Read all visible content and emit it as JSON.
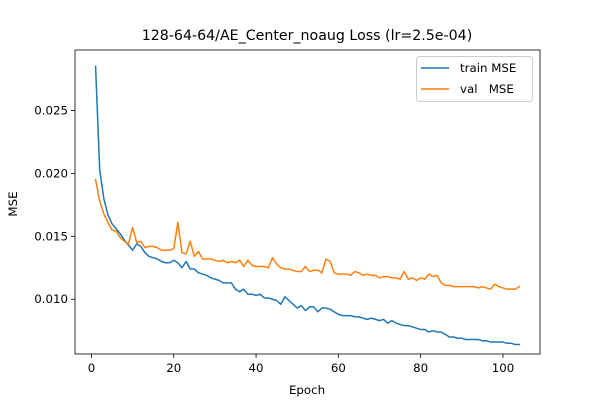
{
  "chart_data": {
    "type": "line",
    "title": "128-64-64/AE_Center_noaug Loss (lr=2.5e-04)",
    "xlabel": "Epoch",
    "ylabel": "MSE",
    "xlim": [
      -4,
      109
    ],
    "ylim": [
      0.00565,
      0.0298
    ],
    "xticks": [
      0,
      20,
      40,
      60,
      80,
      100
    ],
    "yticks": [
      0.01,
      0.015,
      0.02,
      0.025
    ],
    "ytick_labels": [
      "0.010",
      "0.015",
      "0.020",
      "0.025"
    ],
    "grid": false,
    "legend_position": "top-right",
    "x": [
      1,
      2,
      3,
      4,
      5,
      6,
      7,
      8,
      9,
      10,
      11,
      12,
      13,
      14,
      15,
      16,
      17,
      18,
      19,
      20,
      21,
      22,
      23,
      24,
      25,
      26,
      27,
      28,
      29,
      30,
      31,
      32,
      33,
      34,
      35,
      36,
      37,
      38,
      39,
      40,
      41,
      42,
      43,
      44,
      45,
      46,
      47,
      48,
      49,
      50,
      51,
      52,
      53,
      54,
      55,
      56,
      57,
      58,
      59,
      60,
      61,
      62,
      63,
      64,
      65,
      66,
      67,
      68,
      69,
      70,
      71,
      72,
      73,
      74,
      75,
      76,
      77,
      78,
      79,
      80,
      81,
      82,
      83,
      84,
      85,
      86,
      87,
      88,
      89,
      90,
      91,
      92,
      93,
      94,
      95,
      96,
      97,
      98,
      99,
      100,
      101,
      102,
      103,
      104
    ],
    "series": [
      {
        "name": "train MSE",
        "color": "#1f77b4",
        "values": [
          0.0285,
          0.0203,
          0.018,
          0.0167,
          0.016,
          0.0156,
          0.0152,
          0.0147,
          0.0143,
          0.0139,
          0.0144,
          0.0142,
          0.0137,
          0.0134,
          0.0133,
          0.0132,
          0.013,
          0.0129,
          0.0129,
          0.0131,
          0.0129,
          0.0125,
          0.013,
          0.0124,
          0.0124,
          0.0121,
          0.012,
          0.0119,
          0.0117,
          0.0116,
          0.0115,
          0.0113,
          0.0113,
          0.0113,
          0.0108,
          0.0106,
          0.0108,
          0.0104,
          0.0104,
          0.0103,
          0.0104,
          0.0101,
          0.0101,
          0.01,
          0.0099,
          0.0096,
          0.0102,
          0.0099,
          0.0096,
          0.0093,
          0.0095,
          0.0091,
          0.0094,
          0.0094,
          0.009,
          0.0093,
          0.0093,
          0.0092,
          0.009,
          0.0088,
          0.0087,
          0.0087,
          0.0087,
          0.0086,
          0.0086,
          0.0085,
          0.0084,
          0.0085,
          0.0084,
          0.0083,
          0.0084,
          0.0081,
          0.0083,
          0.0081,
          0.008,
          0.0079,
          0.0079,
          0.0078,
          0.0077,
          0.0076,
          0.0076,
          0.0074,
          0.0075,
          0.0074,
          0.0074,
          0.0072,
          0.007,
          0.007,
          0.0069,
          0.0069,
          0.0068,
          0.0068,
          0.0068,
          0.0068,
          0.0067,
          0.0067,
          0.0066,
          0.0066,
          0.0066,
          0.0066,
          0.0065,
          0.0065,
          0.0064,
          0.0064
        ]
      },
      {
        "name": "val   MSE",
        "color": "#ff7f0e",
        "values": [
          0.0195,
          0.0178,
          0.0168,
          0.0161,
          0.0155,
          0.0154,
          0.0149,
          0.0146,
          0.0144,
          0.0157,
          0.0145,
          0.0146,
          0.0141,
          0.0142,
          0.0142,
          0.0141,
          0.0139,
          0.0139,
          0.0139,
          0.014,
          0.0161,
          0.0137,
          0.0136,
          0.0146,
          0.0134,
          0.0138,
          0.0132,
          0.0132,
          0.0132,
          0.0131,
          0.013,
          0.0131,
          0.0129,
          0.013,
          0.0129,
          0.0131,
          0.0126,
          0.0131,
          0.0127,
          0.0126,
          0.0126,
          0.0126,
          0.0125,
          0.0133,
          0.0128,
          0.0125,
          0.0124,
          0.0124,
          0.0123,
          0.0122,
          0.0122,
          0.0126,
          0.0122,
          0.0123,
          0.0123,
          0.0121,
          0.0132,
          0.013,
          0.0121,
          0.012,
          0.012,
          0.012,
          0.0119,
          0.0122,
          0.0121,
          0.0119,
          0.012,
          0.0119,
          0.0119,
          0.0117,
          0.0118,
          0.0118,
          0.0117,
          0.0117,
          0.0116,
          0.0122,
          0.0116,
          0.0117,
          0.0115,
          0.0117,
          0.0116,
          0.012,
          0.0118,
          0.0119,
          0.0113,
          0.0111,
          0.0111,
          0.011,
          0.011,
          0.011,
          0.011,
          0.011,
          0.011,
          0.0109,
          0.011,
          0.0109,
          0.0108,
          0.0112,
          0.011,
          0.0109,
          0.0108,
          0.0108,
          0.0108,
          0.011
        ]
      }
    ]
  }
}
